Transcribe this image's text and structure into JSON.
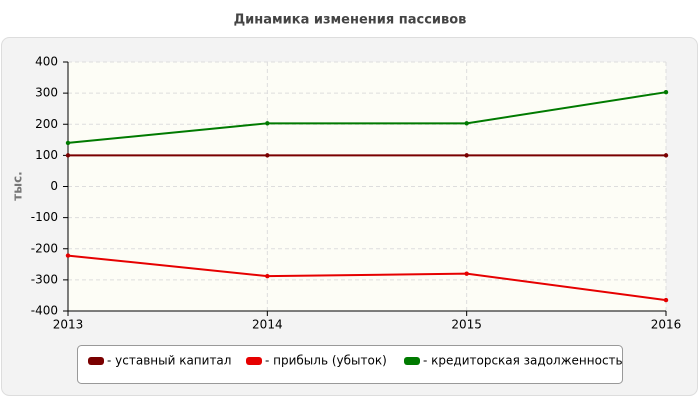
{
  "chart_data": {
    "type": "line",
    "title": "Динамика изменения пассивов",
    "y_label": "тыс.",
    "x": [
      2013,
      2014,
      2015,
      2016
    ],
    "xlim": [
      2013,
      2016
    ],
    "xticks": [
      2013,
      2014,
      2015,
      2016
    ],
    "ylim": [
      -400,
      400
    ],
    "yticks": [
      -400,
      -300,
      -200,
      -100,
      0,
      100,
      200,
      300,
      400
    ],
    "grid": true,
    "series": [
      {
        "name": "- уставный капитал",
        "color": "#7a0000",
        "values": [
          100,
          100,
          100,
          100
        ]
      },
      {
        "name": "- прибыль (убыток)",
        "color": "#e60000",
        "values": [
          -222,
          -288,
          -280,
          -365
        ]
      },
      {
        "name": "- кредиторская задолженность",
        "color": "#007a00",
        "values": [
          140,
          203,
          203,
          303
        ]
      }
    ]
  }
}
